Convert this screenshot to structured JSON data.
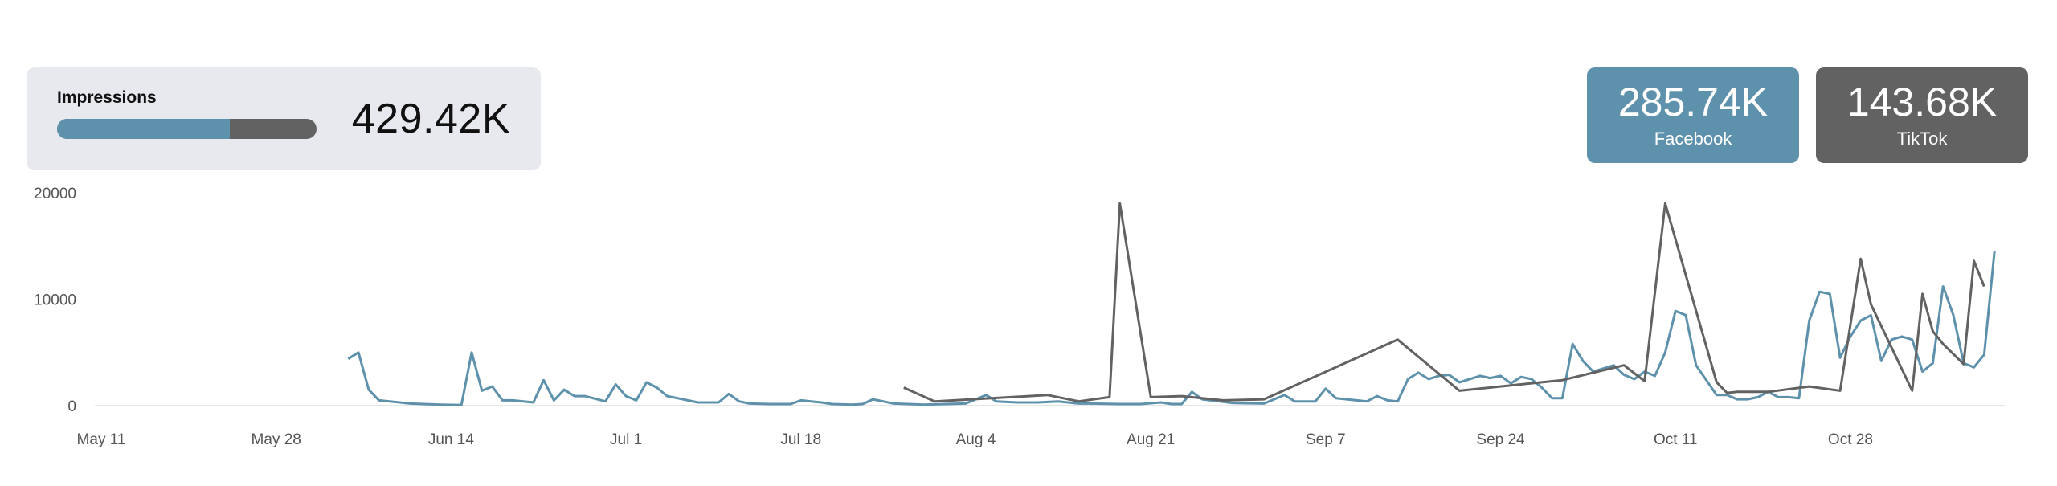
{
  "summary": {
    "label": "Impressions",
    "total": "429.42K",
    "facebook_share": 0.665
  },
  "kpis": [
    {
      "value": "285.74K",
      "label": "Facebook",
      "color": "#5e91ab"
    },
    {
      "value": "143.68K",
      "label": "TikTok",
      "color": "#626262"
    }
  ],
  "chart_data": {
    "type": "line",
    "title": "",
    "xlabel": "",
    "ylabel": "",
    "x_range": [
      "2024-05-11",
      "2024-11-12"
    ],
    "ylim": [
      0,
      20000
    ],
    "yticks": [
      0,
      10000,
      20000
    ],
    "xticks": [
      "2024-05-11",
      "2024-05-28",
      "2024-06-14",
      "2024-07-01",
      "2024-07-18",
      "2024-08-04",
      "2024-08-21",
      "2024-09-07",
      "2024-09-24",
      "2024-10-11",
      "2024-10-28"
    ],
    "xtick_labels": [
      "May 11",
      "May 28",
      "Jun 14",
      "Jul 1",
      "Jul 18",
      "Aug 4",
      "Aug 21",
      "Sep 7",
      "Sep 24",
      "Oct 11",
      "Oct 28"
    ],
    "grid": false,
    "legend": "none",
    "series": [
      {
        "key": "facebook",
        "color": "#5e91ab",
        "points": [
          [
            "2024-06-04",
            4400
          ],
          [
            "2024-06-05",
            5000
          ],
          [
            "2024-06-06",
            1500
          ],
          [
            "2024-06-07",
            500
          ],
          [
            "2024-06-09",
            300
          ],
          [
            "2024-06-10",
            200
          ],
          [
            "2024-06-13",
            100
          ],
          [
            "2024-06-15",
            50
          ],
          [
            "2024-06-16",
            5000
          ],
          [
            "2024-06-17",
            1400
          ],
          [
            "2024-06-18",
            1800
          ],
          [
            "2024-06-19",
            500
          ],
          [
            "2024-06-20",
            500
          ],
          [
            "2024-06-22",
            300
          ],
          [
            "2024-06-23",
            2400
          ],
          [
            "2024-06-24",
            500
          ],
          [
            "2024-06-25",
            1500
          ],
          [
            "2024-06-26",
            900
          ],
          [
            "2024-06-27",
            900
          ],
          [
            "2024-06-29",
            400
          ],
          [
            "2024-06-30",
            2000
          ],
          [
            "2024-07-01",
            900
          ],
          [
            "2024-07-02",
            500
          ],
          [
            "2024-07-03",
            2200
          ],
          [
            "2024-07-04",
            1700
          ],
          [
            "2024-07-05",
            900
          ],
          [
            "2024-07-06",
            700
          ],
          [
            "2024-07-08",
            300
          ],
          [
            "2024-07-10",
            300
          ],
          [
            "2024-07-11",
            1100
          ],
          [
            "2024-07-12",
            400
          ],
          [
            "2024-07-13",
            200
          ],
          [
            "2024-07-15",
            150
          ],
          [
            "2024-07-17",
            150
          ],
          [
            "2024-07-18",
            500
          ],
          [
            "2024-07-20",
            300
          ],
          [
            "2024-07-21",
            150
          ],
          [
            "2024-07-23",
            100
          ],
          [
            "2024-07-24",
            150
          ],
          [
            "2024-07-25",
            600
          ],
          [
            "2024-07-26",
            400
          ],
          [
            "2024-07-27",
            200
          ],
          [
            "2024-07-30",
            100
          ],
          [
            "2024-08-01",
            150
          ],
          [
            "2024-08-03",
            200
          ],
          [
            "2024-08-05",
            1000
          ],
          [
            "2024-08-06",
            400
          ],
          [
            "2024-08-08",
            300
          ],
          [
            "2024-08-10",
            300
          ],
          [
            "2024-08-12",
            400
          ],
          [
            "2024-08-14",
            200
          ],
          [
            "2024-08-15",
            200
          ],
          [
            "2024-08-18",
            150
          ],
          [
            "2024-08-20",
            150
          ],
          [
            "2024-08-22",
            300
          ],
          [
            "2024-08-23",
            150
          ],
          [
            "2024-08-24",
            150
          ],
          [
            "2024-08-25",
            1300
          ],
          [
            "2024-08-26",
            600
          ],
          [
            "2024-08-29",
            250
          ],
          [
            "2024-09-01",
            200
          ],
          [
            "2024-09-03",
            1000
          ],
          [
            "2024-09-04",
            400
          ],
          [
            "2024-09-06",
            400
          ],
          [
            "2024-09-07",
            1600
          ],
          [
            "2024-09-08",
            700
          ],
          [
            "2024-09-10",
            500
          ],
          [
            "2024-09-11",
            400
          ],
          [
            "2024-09-12",
            900
          ],
          [
            "2024-09-13",
            500
          ],
          [
            "2024-09-14",
            400
          ],
          [
            "2024-09-15",
            2500
          ],
          [
            "2024-09-16",
            3100
          ],
          [
            "2024-09-17",
            2500
          ],
          [
            "2024-09-18",
            2800
          ],
          [
            "2024-09-19",
            2900
          ],
          [
            "2024-09-20",
            2200
          ],
          [
            "2024-09-22",
            2800
          ],
          [
            "2024-09-23",
            2600
          ],
          [
            "2024-09-24",
            2800
          ],
          [
            "2024-09-25",
            2100
          ],
          [
            "2024-09-26",
            2700
          ],
          [
            "2024-09-27",
            2500
          ],
          [
            "2024-09-28",
            1700
          ],
          [
            "2024-09-29",
            700
          ],
          [
            "2024-09-30",
            700
          ],
          [
            "2024-10-01",
            5800
          ],
          [
            "2024-10-02",
            4200
          ],
          [
            "2024-10-03",
            3200
          ],
          [
            "2024-10-05",
            3800
          ],
          [
            "2024-10-06",
            2900
          ],
          [
            "2024-10-07",
            2500
          ],
          [
            "2024-10-08",
            3200
          ],
          [
            "2024-10-09",
            2800
          ],
          [
            "2024-10-10",
            5000
          ],
          [
            "2024-10-11",
            8900
          ],
          [
            "2024-10-12",
            8500
          ],
          [
            "2024-10-13",
            3800
          ],
          [
            "2024-10-15",
            1000
          ],
          [
            "2024-10-16",
            1000
          ],
          [
            "2024-10-17",
            600
          ],
          [
            "2024-10-18",
            600
          ],
          [
            "2024-10-19",
            800
          ],
          [
            "2024-10-20",
            1300
          ],
          [
            "2024-10-21",
            800
          ],
          [
            "2024-10-22",
            800
          ],
          [
            "2024-10-23",
            700
          ],
          [
            "2024-10-24",
            8000
          ],
          [
            "2024-10-25",
            10700
          ],
          [
            "2024-10-26",
            10500
          ],
          [
            "2024-10-27",
            4500
          ],
          [
            "2024-10-28",
            6500
          ],
          [
            "2024-10-29",
            8000
          ],
          [
            "2024-10-30",
            8500
          ],
          [
            "2024-10-31",
            4200
          ],
          [
            "2024-11-01",
            6200
          ],
          [
            "2024-11-02",
            6500
          ],
          [
            "2024-11-03",
            6200
          ],
          [
            "2024-11-04",
            3200
          ],
          [
            "2024-11-05",
            4000
          ],
          [
            "2024-11-06",
            11200
          ],
          [
            "2024-11-07",
            8500
          ],
          [
            "2024-11-08",
            4000
          ],
          [
            "2024-11-09",
            3600
          ],
          [
            "2024-11-10",
            4800
          ],
          [
            "2024-11-11",
            14500
          ]
        ]
      },
      {
        "key": "tiktok",
        "color": "#626262",
        "points": [
          [
            "2024-07-28",
            1700
          ],
          [
            "2024-07-31",
            400
          ],
          [
            "2024-08-11",
            1000
          ],
          [
            "2024-08-14",
            400
          ],
          [
            "2024-08-17",
            800
          ],
          [
            "2024-08-18",
            19000
          ],
          [
            "2024-08-21",
            800
          ],
          [
            "2024-08-24",
            900
          ],
          [
            "2024-08-28",
            500
          ],
          [
            "2024-09-01",
            600
          ],
          [
            "2024-09-14",
            6200
          ],
          [
            "2024-09-20",
            1400
          ],
          [
            "2024-09-30",
            2400
          ],
          [
            "2024-10-06",
            3800
          ],
          [
            "2024-10-08",
            2300
          ],
          [
            "2024-10-10",
            19000
          ],
          [
            "2024-10-15",
            2200
          ],
          [
            "2024-10-16",
            1200
          ],
          [
            "2024-10-17",
            1300
          ],
          [
            "2024-10-20",
            1300
          ],
          [
            "2024-10-24",
            1800
          ],
          [
            "2024-10-27",
            1400
          ],
          [
            "2024-10-29",
            13800
          ],
          [
            "2024-10-30",
            9500
          ],
          [
            "2024-11-03",
            1400
          ],
          [
            "2024-11-04",
            10500
          ],
          [
            "2024-11-05",
            7000
          ],
          [
            "2024-11-06",
            5800
          ],
          [
            "2024-11-08",
            3900
          ],
          [
            "2024-11-09",
            13600
          ],
          [
            "2024-11-10",
            11200
          ]
        ]
      }
    ]
  }
}
